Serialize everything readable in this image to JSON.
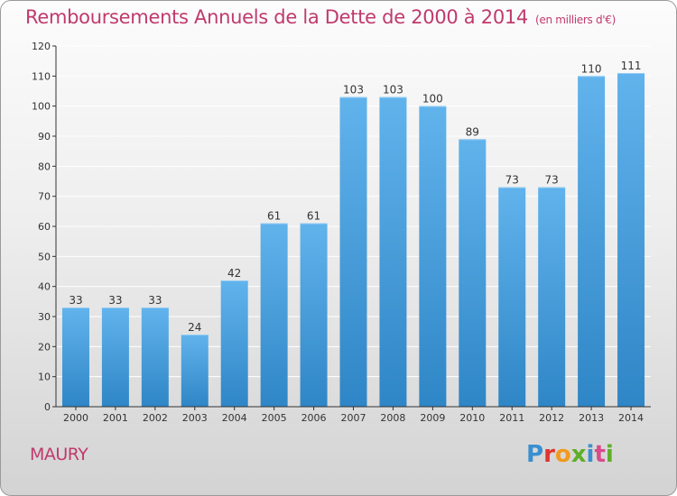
{
  "header": {
    "title": "Remboursements Annuels de la Dette de 2000 à 2014",
    "unit": "(en milliers d'€)"
  },
  "footer": {
    "place": "MAURY",
    "logo": {
      "text": "Proxiti",
      "letter_colors": [
        "#3a8fd0",
        "#e0352f",
        "#f29a1c",
        "#5fae2a",
        "#3a8fd0",
        "#d94a8c",
        "#5fae2a"
      ]
    }
  },
  "colors": {
    "bar_light": "#61b3ec",
    "bar_dark": "#2f86c6",
    "accent": "#c03a6c",
    "grid": "#ffffff"
  },
  "chart_data": {
    "type": "bar",
    "title": "Remboursements Annuels de la Dette de 2000 à 2014",
    "xlabel": "",
    "ylabel": "",
    "categories": [
      "2000",
      "2001",
      "2002",
      "2003",
      "2004",
      "2005",
      "2006",
      "2007",
      "2008",
      "2009",
      "2010",
      "2011",
      "2012",
      "2013",
      "2014"
    ],
    "values": [
      33,
      33,
      33,
      24,
      42,
      61,
      61,
      103,
      103,
      100,
      89,
      73,
      73,
      110,
      111
    ],
    "ylim": [
      0,
      120
    ],
    "yticks": [
      0,
      10,
      20,
      30,
      40,
      50,
      60,
      70,
      80,
      90,
      100,
      110,
      120
    ],
    "grid": true,
    "data_labels": true
  }
}
